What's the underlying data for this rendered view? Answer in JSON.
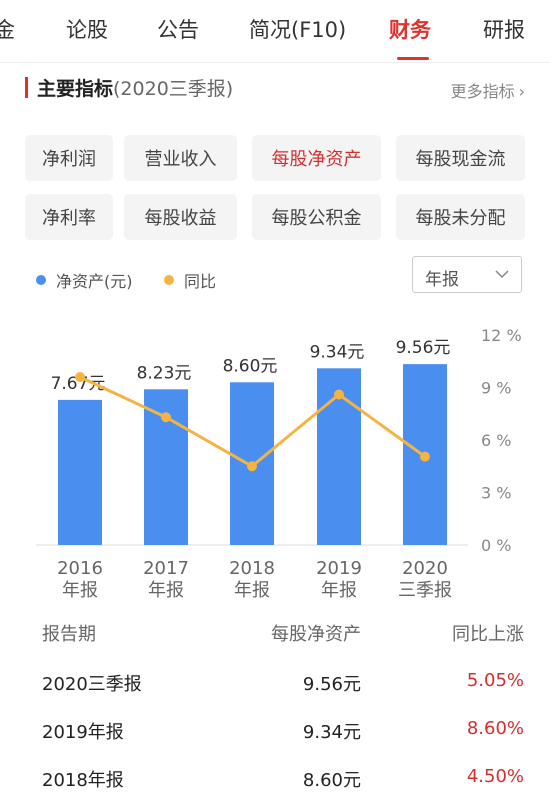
{
  "tabs": [
    {
      "label": "金",
      "active": false
    },
    {
      "label": "论股",
      "active": false
    },
    {
      "label": "公告",
      "active": false
    },
    {
      "label": "简况(F10)",
      "active": false
    },
    {
      "label": "财务",
      "active": true
    },
    {
      "label": "研报",
      "active": false
    }
  ],
  "section": {
    "title": "主要指标",
    "subtitle": "(2020三季报)",
    "more_label": "更多指标",
    "more_chevron": "›"
  },
  "metrics": [
    {
      "label": "净利润",
      "active": false
    },
    {
      "label": "营业收入",
      "active": false
    },
    {
      "label": "每股净资产",
      "active": true
    },
    {
      "label": "每股现金流",
      "active": false
    },
    {
      "label": "净利率",
      "active": false
    },
    {
      "label": "每股收益",
      "active": false
    },
    {
      "label": "每股公积金",
      "active": false
    },
    {
      "label": "每股未分配",
      "active": false
    }
  ],
  "legend": {
    "bar_label": "净资产(元)",
    "line_label": "同比"
  },
  "period_select": {
    "value": "年报",
    "icon": "chevron-down-icon"
  },
  "colors": {
    "accent": "#e0312f",
    "bar": "#4a8ff0",
    "line": "#f5b341"
  },
  "chart_data": {
    "type": "bar",
    "categories": [
      [
        "2016",
        "年报"
      ],
      [
        "2017",
        "年报"
      ],
      [
        "2018",
        "年报"
      ],
      [
        "2019",
        "年报"
      ],
      [
        "2020",
        "三季报"
      ]
    ],
    "series": [
      {
        "name": "净资产(元)",
        "type": "bar",
        "values": [
          7.67,
          8.23,
          8.6,
          9.34,
          9.56
        ],
        "data_labels": [
          "7.67元",
          "8.23元",
          "8.60元",
          "9.34元",
          "9.56元"
        ]
      },
      {
        "name": "同比",
        "type": "line",
        "axis": "right",
        "values": [
          9.6,
          7.3,
          4.5,
          8.6,
          5.05
        ]
      }
    ],
    "right_ylim": [
      0,
      12
    ],
    "right_ticks": [
      "0 %",
      "3 %",
      "6 %",
      "9 %",
      "12 %"
    ],
    "right_tick_values": [
      0,
      3,
      6,
      9,
      12
    ],
    "bar_ylim": [
      0,
      11.1
    ],
    "grid": false,
    "legend_position": "top-left"
  },
  "table": {
    "headers": [
      "报告期",
      "每股净资产",
      "同比上涨"
    ],
    "rows": [
      [
        "2020三季报",
        "9.56元",
        "5.05%"
      ],
      [
        "2019年报",
        "9.34元",
        "8.60%"
      ],
      [
        "2018年报",
        "8.60元",
        "4.50%"
      ]
    ]
  }
}
